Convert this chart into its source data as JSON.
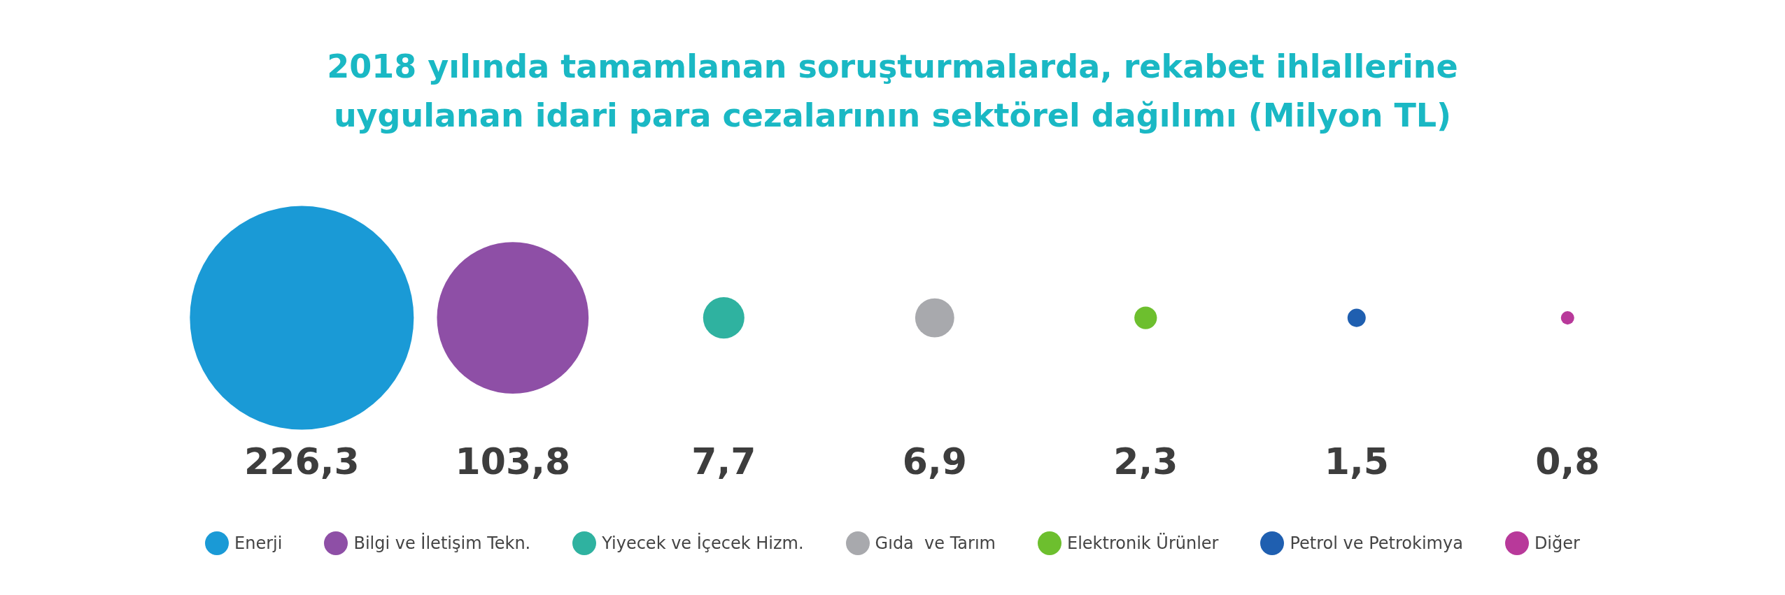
{
  "chart_data": {
    "type": "other",
    "title": "2018 yılında tamamlanan soruşturmalarda, rekabet ihlallerine uygulanan idari para cezalarının sektörel dağılımı (Milyon TL)",
    "series": [
      {
        "name": "Enerji",
        "color": "#1a9ad6",
        "values": [
          226.3
        ],
        "value_labels": [
          "226,3"
        ]
      },
      {
        "name": "Bilgi ve İletişim Tekn.",
        "color": "#8e4fa6",
        "values": [
          103.8
        ],
        "value_labels": [
          "103,8"
        ]
      },
      {
        "name": "Yiyecek ve İçecek Hizm.",
        "color": "#2fb2a0",
        "values": [
          7.7
        ],
        "value_labels": [
          "7,7"
        ]
      },
      {
        "name": "Gıda  ve Tarım",
        "color": "#a8a9ad",
        "values": [
          6.9
        ],
        "value_labels": [
          "6,9"
        ]
      },
      {
        "name": "Elektronik Ürünler",
        "color": "#6dbf2e",
        "values": [
          2.3
        ],
        "value_labels": [
          "2,3"
        ]
      },
      {
        "name": "Petrol ve Petrokimya",
        "color": "#1f5fb0",
        "values": [
          1.5
        ],
        "value_labels": [
          "1,5"
        ]
      },
      {
        "name": "Diğer",
        "color": "#b8399a",
        "values": [
          0.8
        ],
        "value_labels": [
          "0,8"
        ]
      }
    ],
    "legend": "bottom"
  }
}
